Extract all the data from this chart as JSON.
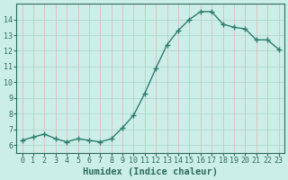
{
  "x": [
    0,
    1,
    2,
    3,
    4,
    5,
    6,
    7,
    8,
    9,
    10,
    11,
    12,
    13,
    14,
    15,
    16,
    17,
    18,
    19,
    20,
    21,
    22,
    23
  ],
  "y": [
    6.3,
    6.5,
    6.7,
    6.4,
    6.2,
    6.4,
    6.3,
    6.2,
    6.4,
    7.1,
    7.9,
    9.3,
    10.9,
    12.4,
    13.3,
    14.0,
    14.5,
    14.5,
    13.7,
    13.5,
    13.4,
    12.7,
    12.7,
    12.1
  ],
  "line_color": "#2e7d6e",
  "marker": "+",
  "marker_size": 4,
  "marker_linewidth": 1.0,
  "line_width": 1.0,
  "xlabel": "Humidex (Indice chaleur)",
  "xlabel_fontsize": 7.5,
  "ylim_min": 5.5,
  "ylim_max": 15.0,
  "xlim_min": -0.5,
  "xlim_max": 23.5,
  "yticks": [
    6,
    7,
    8,
    9,
    10,
    11,
    12,
    13,
    14
  ],
  "xticks": [
    0,
    1,
    2,
    3,
    4,
    5,
    6,
    7,
    8,
    9,
    10,
    11,
    12,
    13,
    14,
    15,
    16,
    17,
    18,
    19,
    20,
    21,
    22,
    23
  ],
  "tick_fontsize": 6,
  "bg_color": "#cceee8",
  "plot_bg_color": "#cceee8",
  "vgrid_color": "#e8b0b0",
  "hgrid_color": "#a8d4cc",
  "text_color": "#2e6b5e",
  "spine_color": "#2e6b5e"
}
